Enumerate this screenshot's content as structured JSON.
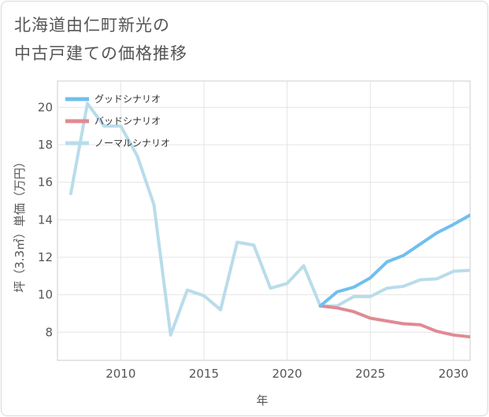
{
  "title": {
    "line1": "北海道由仁町新光の",
    "line2": "中古戸建ての価格推移"
  },
  "chart_data": {
    "type": "line",
    "title": "北海道由仁町新光の中古戸建ての価格推移",
    "xlabel": "年",
    "ylabel": "坪（3.3㎡）単価（万円）",
    "xlim": [
      2006.2,
      2031.0
    ],
    "ylim": [
      6.5,
      21.4
    ],
    "xticks": [
      2010,
      2015,
      2020,
      2025,
      2030
    ],
    "yticks": [
      8,
      10,
      12,
      14,
      16,
      18,
      20
    ],
    "grid": true,
    "legend_position": "top-left",
    "series": [
      {
        "name": "グッドシナリオ",
        "color": "#6fbfee",
        "x": [
          2022,
          2023,
          2024,
          2025,
          2026,
          2027,
          2028,
          2029,
          2030,
          2031
        ],
        "y": [
          9.4,
          10.15,
          10.4,
          10.9,
          11.75,
          12.1,
          12.7,
          13.3,
          13.75,
          14.25
        ]
      },
      {
        "name": "バッドシナリオ",
        "color": "#e08a93",
        "x": [
          2022,
          2023,
          2024,
          2025,
          2026,
          2027,
          2028,
          2029,
          2030,
          2031
        ],
        "y": [
          9.4,
          9.3,
          9.1,
          8.75,
          8.6,
          8.45,
          8.4,
          8.05,
          7.85,
          7.75
        ]
      },
      {
        "name": "ノーマルシナリオ",
        "color": "#b9dcea",
        "x": [
          2007,
          2008,
          2009,
          2010,
          2011,
          2012,
          2013,
          2014,
          2015,
          2016,
          2017,
          2018,
          2019,
          2020,
          2021,
          2022,
          2023,
          2024,
          2025,
          2026,
          2027,
          2028,
          2029,
          2030,
          2031
        ],
        "y": [
          15.4,
          20.2,
          19.0,
          19.0,
          17.4,
          14.8,
          7.85,
          10.25,
          9.95,
          9.2,
          12.8,
          12.65,
          10.35,
          10.6,
          11.55,
          9.4,
          9.4,
          9.9,
          9.9,
          10.35,
          10.45,
          10.8,
          10.85,
          11.25,
          11.3
        ]
      }
    ]
  }
}
